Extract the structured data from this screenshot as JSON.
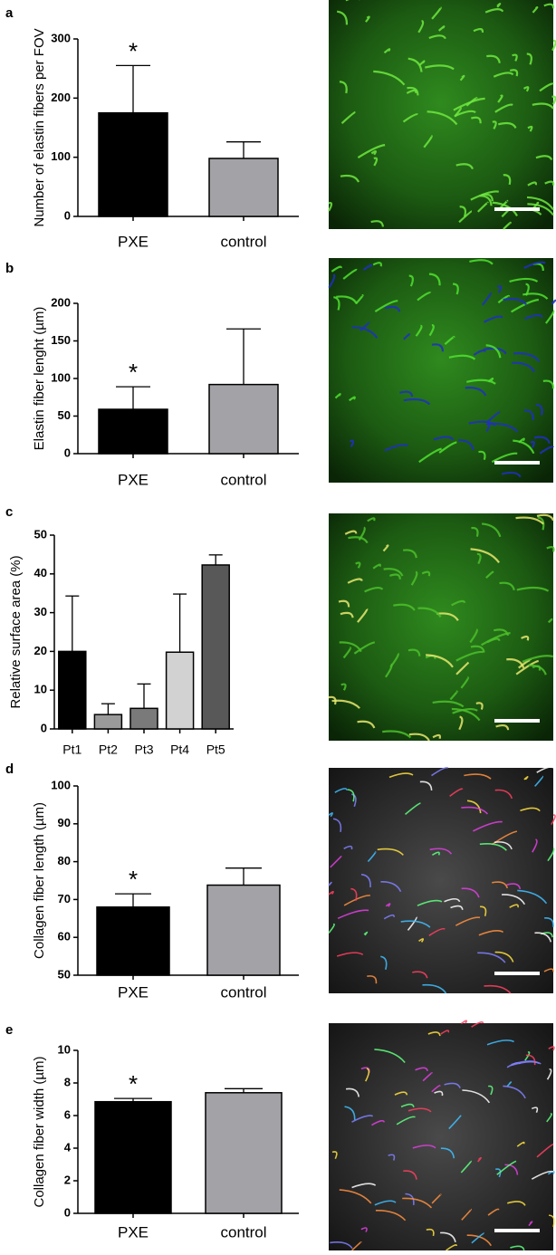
{
  "chart_data": [
    {
      "type": "bar",
      "label": "a",
      "ylabel": "Number of elastin fibers per FOV",
      "categories": [
        "PXE",
        "control"
      ],
      "values": [
        175,
        98
      ],
      "errors": [
        80,
        28
      ],
      "colors": [
        "#000000",
        "#a3a3a7"
      ],
      "ylim": [
        0,
        300
      ],
      "yticks": [
        0,
        100,
        200,
        300
      ],
      "annotation": "*"
    },
    {
      "type": "bar",
      "label": "b",
      "ylabel": "Elastin fiber lenght (µm)",
      "categories": [
        "PXE",
        "control"
      ],
      "values": [
        59,
        92
      ],
      "errors": [
        30,
        74
      ],
      "colors": [
        "#000000",
        "#a3a3a7"
      ],
      "ylim": [
        0,
        200
      ],
      "yticks": [
        0,
        50,
        100,
        150,
        200
      ],
      "annotation": "*"
    },
    {
      "type": "bar",
      "label": "c",
      "ylabel": "Relative surface area (%)",
      "categories": [
        "Pt1",
        "Pt2",
        "Pt3",
        "Pt4",
        "Pt5"
      ],
      "values": [
        20,
        3.7,
        5.3,
        19.8,
        42.3
      ],
      "errors": [
        14.3,
        2.8,
        6.3,
        15,
        2.6
      ],
      "colors": [
        "#000000",
        "#9a9a9a",
        "#7a7a7a",
        "#d2d2d2",
        "#585858"
      ],
      "ylim": [
        0,
        50
      ],
      "yticks": [
        0,
        10,
        20,
        30,
        40,
        50
      ]
    },
    {
      "type": "bar",
      "label": "d",
      "ylabel": "Collagen fiber length (µm)",
      "categories": [
        "PXE",
        "control"
      ],
      "values": [
        68,
        73.8
      ],
      "errors": [
        3.5,
        4.5
      ],
      "colors": [
        "#000000",
        "#a3a3a7"
      ],
      "ylim": [
        50,
        100
      ],
      "yticks": [
        50,
        60,
        70,
        80,
        90,
        100
      ],
      "annotation": "*"
    },
    {
      "type": "bar",
      "label": "e",
      "ylabel": "Collagen fiber width (µm)",
      "categories": [
        "PXE",
        "control"
      ],
      "values": [
        6.85,
        7.4
      ],
      "errors": [
        0.2,
        0.25
      ],
      "colors": [
        "#000000",
        "#a3a3a7"
      ],
      "ylim": [
        0,
        10
      ],
      "yticks": [
        0,
        2,
        4,
        6,
        8,
        10
      ],
      "annotation": "*"
    }
  ]
}
